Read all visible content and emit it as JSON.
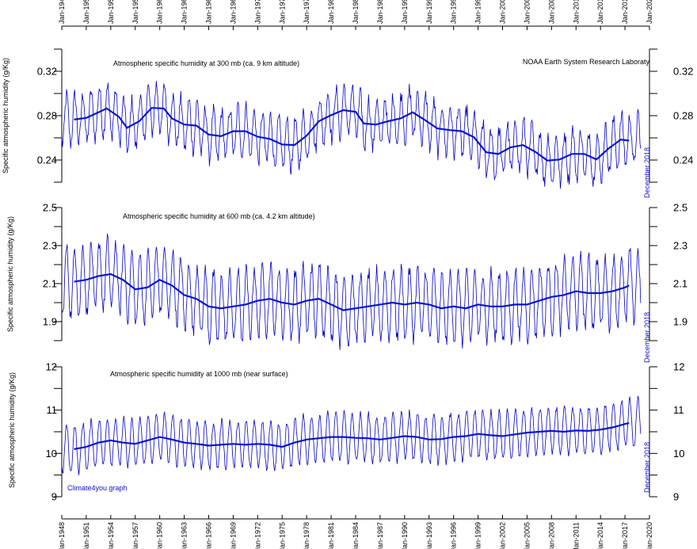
{
  "source_label": "NOAA Earth System Research Laboraty",
  "credit_label": "Climate4you graph",
  "date_stamp": "December 2018",
  "x_ticks": [
    "Jan-1948",
    "Jan-1951",
    "Jan-1954",
    "Jan-1957",
    "Jan-1960",
    "Jan-1963",
    "Jan-1966",
    "Jan-1969",
    "Jan-1972",
    "Jan-1975",
    "Jan-1978",
    "Jan-1981",
    "Jan-1984",
    "Jan-1987",
    "Jan-1990",
    "Jan-1993",
    "Jan-1996",
    "Jan-1999",
    "Jan-2002",
    "Jan-2005",
    "Jan-2008",
    "Jan-2011",
    "Jan-2014",
    "Jan-2017",
    "Jan-2020"
  ],
  "colors": {
    "monthly": "#0000c8",
    "smooth": "#0a14d0",
    "text_blue": "#1010c8",
    "axis": "#000000"
  },
  "chart_data": [
    {
      "type": "line",
      "title": "Atmospheric specific humidity at 300 mb (ca. 9 km altitude)",
      "ylabel": "Specific atmospheric humidity (g/Kg)",
      "xlim": [
        1948.0,
        2020.0
      ],
      "ylim": [
        0.22,
        0.34
      ],
      "y_ticks": [
        "0.24",
        "0.28",
        "0.32"
      ],
      "y_tick_values": [
        0.24,
        0.28,
        0.32
      ],
      "series": [
        {
          "name": "monthly",
          "x_start": 1948.0,
          "x_end": 2018.92,
          "amplitude": 0.022,
          "noise": 0.007
        },
        {
          "name": "37-month running average",
          "x": [
            1949.5,
            1951,
            1952.5,
            1953.5,
            1955,
            1956,
            1957.5,
            1959,
            1960.5,
            1961.5,
            1963,
            1964.5,
            1966,
            1967.5,
            1969,
            1970.5,
            1972,
            1973.5,
            1975,
            1976.5,
            1978,
            1979.5,
            1981,
            1982.5,
            1984,
            1985,
            1986.5,
            1988,
            1989.5,
            1991,
            1992.5,
            1994,
            1995.5,
            1997,
            1998.5,
            2000,
            2001.5,
            2003,
            2004.5,
            2006,
            2007.5,
            2009,
            2010.5,
            2012,
            2013.5,
            2015,
            2016.5,
            2017.5
          ],
          "y": [
            0.2765,
            0.278,
            0.283,
            0.2865,
            0.279,
            0.269,
            0.275,
            0.287,
            0.2865,
            0.2775,
            0.272,
            0.271,
            0.263,
            0.2615,
            0.266,
            0.266,
            0.261,
            0.259,
            0.254,
            0.2535,
            0.262,
            0.275,
            0.2805,
            0.285,
            0.2835,
            0.273,
            0.272,
            0.275,
            0.2775,
            0.283,
            0.276,
            0.2685,
            0.267,
            0.266,
            0.2605,
            0.247,
            0.2455,
            0.2515,
            0.2535,
            0.2475,
            0.2395,
            0.2405,
            0.2455,
            0.2455,
            0.2405,
            0.2505,
            0.2585,
            0.2575
          ]
        }
      ]
    },
    {
      "type": "line",
      "title": "Atmospheric specific humidity at 600 mb (ca. 4.2 km altitude)",
      "ylabel": "Specific atmospheric humidity (g/Kg)",
      "xlim": [
        1948.0,
        2020.0
      ],
      "ylim": [
        1.8,
        2.5
      ],
      "y_ticks": [
        "1.9",
        "2.1",
        "2.3",
        "2.5"
      ],
      "y_tick_values": [
        1.9,
        2.1,
        2.3,
        2.5
      ],
      "series": [
        {
          "name": "monthly",
          "x_start": 1948.0,
          "x_end": 2018.92,
          "amplitude": 0.18,
          "noise": 0.04
        },
        {
          "name": "37-month running average",
          "x": [
            1949.5,
            1951,
            1952.5,
            1954,
            1955.5,
            1957,
            1958.5,
            1960,
            1961.5,
            1963,
            1964.5,
            1966,
            1967.5,
            1969,
            1970.5,
            1972,
            1973.5,
            1975,
            1976.5,
            1978,
            1979.5,
            1981,
            1982.5,
            1984,
            1985.5,
            1987,
            1988.5,
            1990,
            1991.5,
            1993,
            1994.5,
            1996,
            1997.5,
            1999,
            2000.5,
            2002,
            2003.5,
            2005,
            2006.5,
            2008,
            2009.5,
            2011,
            2012.5,
            2014,
            2015.5,
            2017,
            2017.5
          ],
          "y": [
            2.11,
            2.12,
            2.14,
            2.15,
            2.12,
            2.07,
            2.08,
            2.12,
            2.09,
            2.04,
            2.02,
            1.98,
            1.97,
            1.98,
            1.99,
            2.01,
            2.02,
            2.0,
            1.99,
            2.01,
            2.02,
            1.99,
            1.96,
            1.97,
            1.98,
            1.99,
            2.0,
            1.99,
            2.0,
            1.99,
            1.97,
            1.98,
            1.97,
            1.99,
            1.98,
            1.98,
            1.99,
            1.99,
            2.01,
            2.03,
            2.04,
            2.06,
            2.05,
            2.05,
            2.06,
            2.08,
            2.09
          ]
        }
      ]
    },
    {
      "type": "line",
      "title": "Atmospheric specific humidity at 1000 mb (near surface)",
      "ylabel": "Specific atmospheric humidity (g/Kg)",
      "xlim": [
        1948.0,
        2020.0
      ],
      "ylim": [
        9.0,
        12.0
      ],
      "y_ticks": [
        "9",
        "10",
        "11",
        "12"
      ],
      "y_tick_values": [
        9,
        10,
        11,
        12
      ],
      "series": [
        {
          "name": "monthly",
          "x_start": 1948.0,
          "x_end": 2018.92,
          "amplitude": 0.55,
          "noise": 0.08
        },
        {
          "name": "37-month running average",
          "x": [
            1949.5,
            1951,
            1952.5,
            1954,
            1955.5,
            1957,
            1958.5,
            1960,
            1961.5,
            1963,
            1964.5,
            1966,
            1967.5,
            1969,
            1970.5,
            1972,
            1973.5,
            1975,
            1976.5,
            1978,
            1979.5,
            1981,
            1982.5,
            1984,
            1985.5,
            1987,
            1988.5,
            1990,
            1991.5,
            1993,
            1994.5,
            1996,
            1997.5,
            1999,
            2000.5,
            2002,
            2003.5,
            2005,
            2006.5,
            2008,
            2009.5,
            2011,
            2012.5,
            2014,
            2015.5,
            2017,
            2017.5
          ],
          "y": [
            10.1,
            10.15,
            10.25,
            10.3,
            10.25,
            10.22,
            10.3,
            10.38,
            10.32,
            10.25,
            10.22,
            10.18,
            10.2,
            10.22,
            10.2,
            10.22,
            10.2,
            10.15,
            10.25,
            10.32,
            10.35,
            10.38,
            10.38,
            10.36,
            10.35,
            10.32,
            10.36,
            10.4,
            10.38,
            10.32,
            10.33,
            10.38,
            10.4,
            10.45,
            10.42,
            10.4,
            10.44,
            10.48,
            10.5,
            10.52,
            10.5,
            10.53,
            10.52,
            10.55,
            10.6,
            10.68,
            10.7
          ]
        }
      ]
    }
  ]
}
